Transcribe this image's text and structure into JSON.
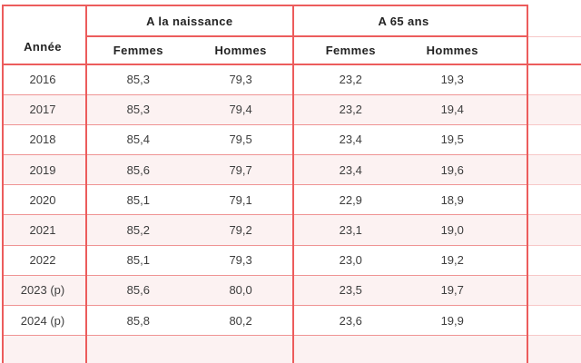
{
  "chart_data": {
    "type": "table",
    "row_header": "Année",
    "column_groups": [
      {
        "label": "A la naissance",
        "columns": [
          "Femmes",
          "Hommes"
        ]
      },
      {
        "label": "A 65 ans",
        "columns": [
          "Femmes",
          "Hommes"
        ]
      }
    ],
    "rows": [
      {
        "year": "2016",
        "values": [
          "85,3",
          "79,3",
          "23,2",
          "19,3"
        ]
      },
      {
        "year": "2017",
        "values": [
          "85,3",
          "79,4",
          "23,2",
          "19,4"
        ]
      },
      {
        "year": "2018",
        "values": [
          "85,4",
          "79,5",
          "23,4",
          "19,5"
        ]
      },
      {
        "year": "2019",
        "values": [
          "85,6",
          "79,7",
          "23,4",
          "19,6"
        ]
      },
      {
        "year": "2020",
        "values": [
          "85,1",
          "79,1",
          "22,9",
          "18,9"
        ]
      },
      {
        "year": "2021",
        "values": [
          "85,2",
          "79,2",
          "23,1",
          "19,0"
        ]
      },
      {
        "year": "2022",
        "values": [
          "85,1",
          "79,3",
          "23,0",
          "19,2"
        ]
      },
      {
        "year": "2023 (p)",
        "values": [
          "85,6",
          "80,0",
          "23,5",
          "19,7"
        ]
      },
      {
        "year": "2024 (p)",
        "values": [
          "85,8",
          "80,2",
          "23,6",
          "19,9"
        ]
      }
    ]
  },
  "colors": {
    "grid_strong": "#ec5c5c",
    "grid_light": "#ef9494",
    "grid_faint": "#f7c8c8",
    "alt_row_bg": "#fcf2f2",
    "header_text": "#232323",
    "data_text": "#3e3e3e"
  }
}
